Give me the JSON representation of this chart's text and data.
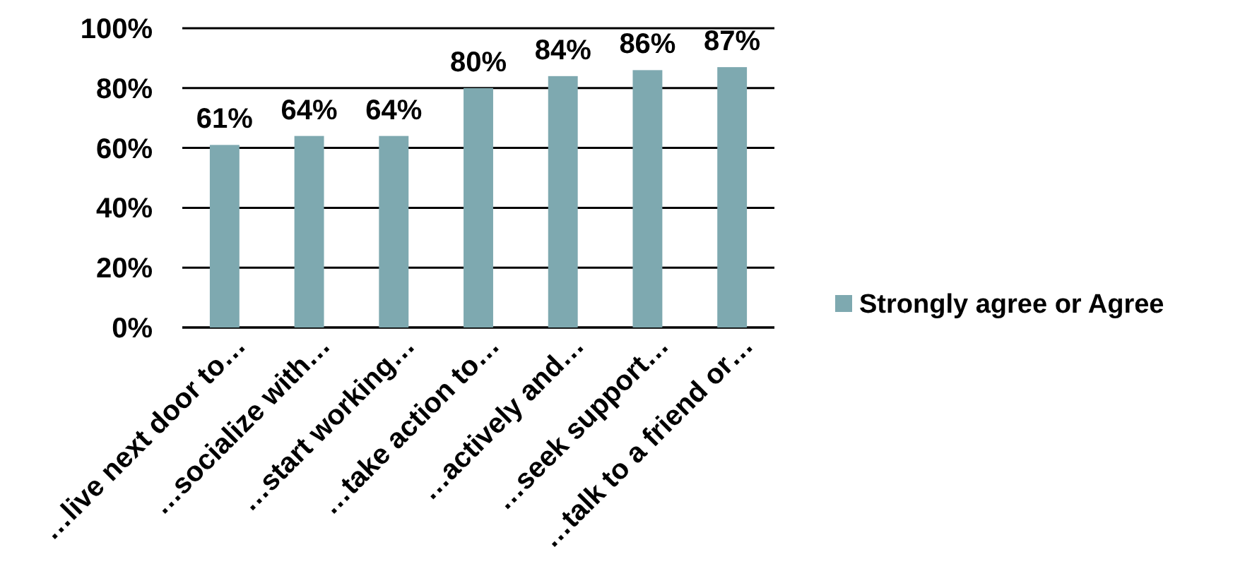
{
  "chart_data": {
    "type": "bar",
    "categories": [
      "…live next door to…",
      "…socialize with…",
      "…start working…",
      "…take action to…",
      "…actively and…",
      "…seek support…",
      "…talk to a friend or…"
    ],
    "series": [
      {
        "name": "Strongly agree or Agree",
        "color": "#7ea9b0",
        "values": [
          61,
          64,
          64,
          80,
          84,
          86,
          87
        ],
        "value_labels": [
          "61%",
          "64%",
          "64%",
          "80%",
          "84%",
          "86%",
          "87%"
        ]
      }
    ],
    "ylim": [
      0,
      100
    ],
    "yticks": [
      {
        "value": 0,
        "label": "0%"
      },
      {
        "value": 20,
        "label": "20%"
      },
      {
        "value": 40,
        "label": "40%"
      },
      {
        "value": 60,
        "label": "60%"
      },
      {
        "value": 80,
        "label": "80%"
      },
      {
        "value": 100,
        "label": "100%"
      }
    ],
    "grid": "y",
    "legend": "right"
  }
}
